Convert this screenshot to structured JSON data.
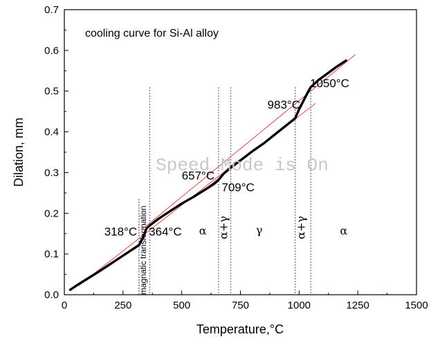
{
  "chart_data": {
    "type": "line",
    "title": "cooling curve for Si-Al alloy",
    "xlabel": "Temperature,°C",
    "ylabel": "Dilation, mm",
    "xlim": [
      0,
      1500
    ],
    "ylim": [
      0,
      0.7
    ],
    "xticks": [
      "0",
      "250",
      "500",
      "750",
      "1000",
      "1250",
      "1500"
    ],
    "yticks": [
      "0.0",
      "0.1",
      "0.2",
      "0.3",
      "0.4",
      "0.5",
      "0.6",
      "0.7"
    ],
    "grid": false,
    "series": [
      {
        "style": "data",
        "color": "#000000",
        "x": [
          25,
          50,
          100,
          150,
          200,
          250,
          300,
          318,
          335,
          350,
          364,
          400,
          450,
          500,
          550,
          600,
          640,
          657,
          680,
          709,
          750,
          800,
          850,
          900,
          950,
          983,
          1000,
          1020,
          1040,
          1050,
          1080,
          1120,
          1160,
          1200
        ],
        "y": [
          0.012,
          0.022,
          0.04,
          0.058,
          0.077,
          0.096,
          0.115,
          0.122,
          0.14,
          0.163,
          0.17,
          0.186,
          0.205,
          0.224,
          0.24,
          0.258,
          0.273,
          0.282,
          0.298,
          0.313,
          0.33,
          0.352,
          0.372,
          0.395,
          0.418,
          0.433,
          0.455,
          0.478,
          0.5,
          0.51,
          0.526,
          0.543,
          0.56,
          0.575
        ]
      },
      {
        "style": "fit",
        "color": "#d84848",
        "x": [
          60,
          700
        ],
        "y": [
          0.022,
          0.31
        ]
      },
      {
        "style": "fit",
        "color": "#d84848",
        "x": [
          330,
          1240
        ],
        "y": [
          0.16,
          0.59
        ]
      },
      {
        "style": "fit",
        "color": "#d84848",
        "x": [
          600,
          1070
        ],
        "y": [
          0.26,
          0.47
        ]
      }
    ],
    "vlines": [
      {
        "x": 318,
        "color": "#2b2b8a",
        "label": "magnatic transformation"
      },
      {
        "x": 364,
        "color": "#5a5ab0"
      },
      {
        "x": 657,
        "color": "#5a5ab0"
      },
      {
        "x": 709,
        "color": "#5a5ab0"
      },
      {
        "x": 983,
        "color": "#5a5ab0"
      },
      {
        "x": 1050,
        "color": "#5a5ab0"
      }
    ],
    "annotations": [
      {
        "text": "318°C",
        "x": 240,
        "y": 0.145
      },
      {
        "text": "364°C",
        "x": 430,
        "y": 0.145
      },
      {
        "text": "657°C",
        "x": 570,
        "y": 0.283
      },
      {
        "text": "709°C",
        "x": 740,
        "y": 0.254
      },
      {
        "text": "983°C",
        "x": 935,
        "y": 0.457
      },
      {
        "text": "1050°C",
        "x": 1130,
        "y": 0.51
      }
    ],
    "phase_labels": [
      {
        "text": "α",
        "x": 590,
        "y": 0.158
      },
      {
        "text": "α+γ",
        "x": 680,
        "y": 0.165
      },
      {
        "text": "γ",
        "x": 830,
        "y": 0.16
      },
      {
        "text": "α+γ",
        "x": 1010,
        "y": 0.165
      },
      {
        "text": "α",
        "x": 1190,
        "y": 0.158
      }
    ]
  },
  "overlay": {
    "watermark": "Speed Mode is On"
  }
}
